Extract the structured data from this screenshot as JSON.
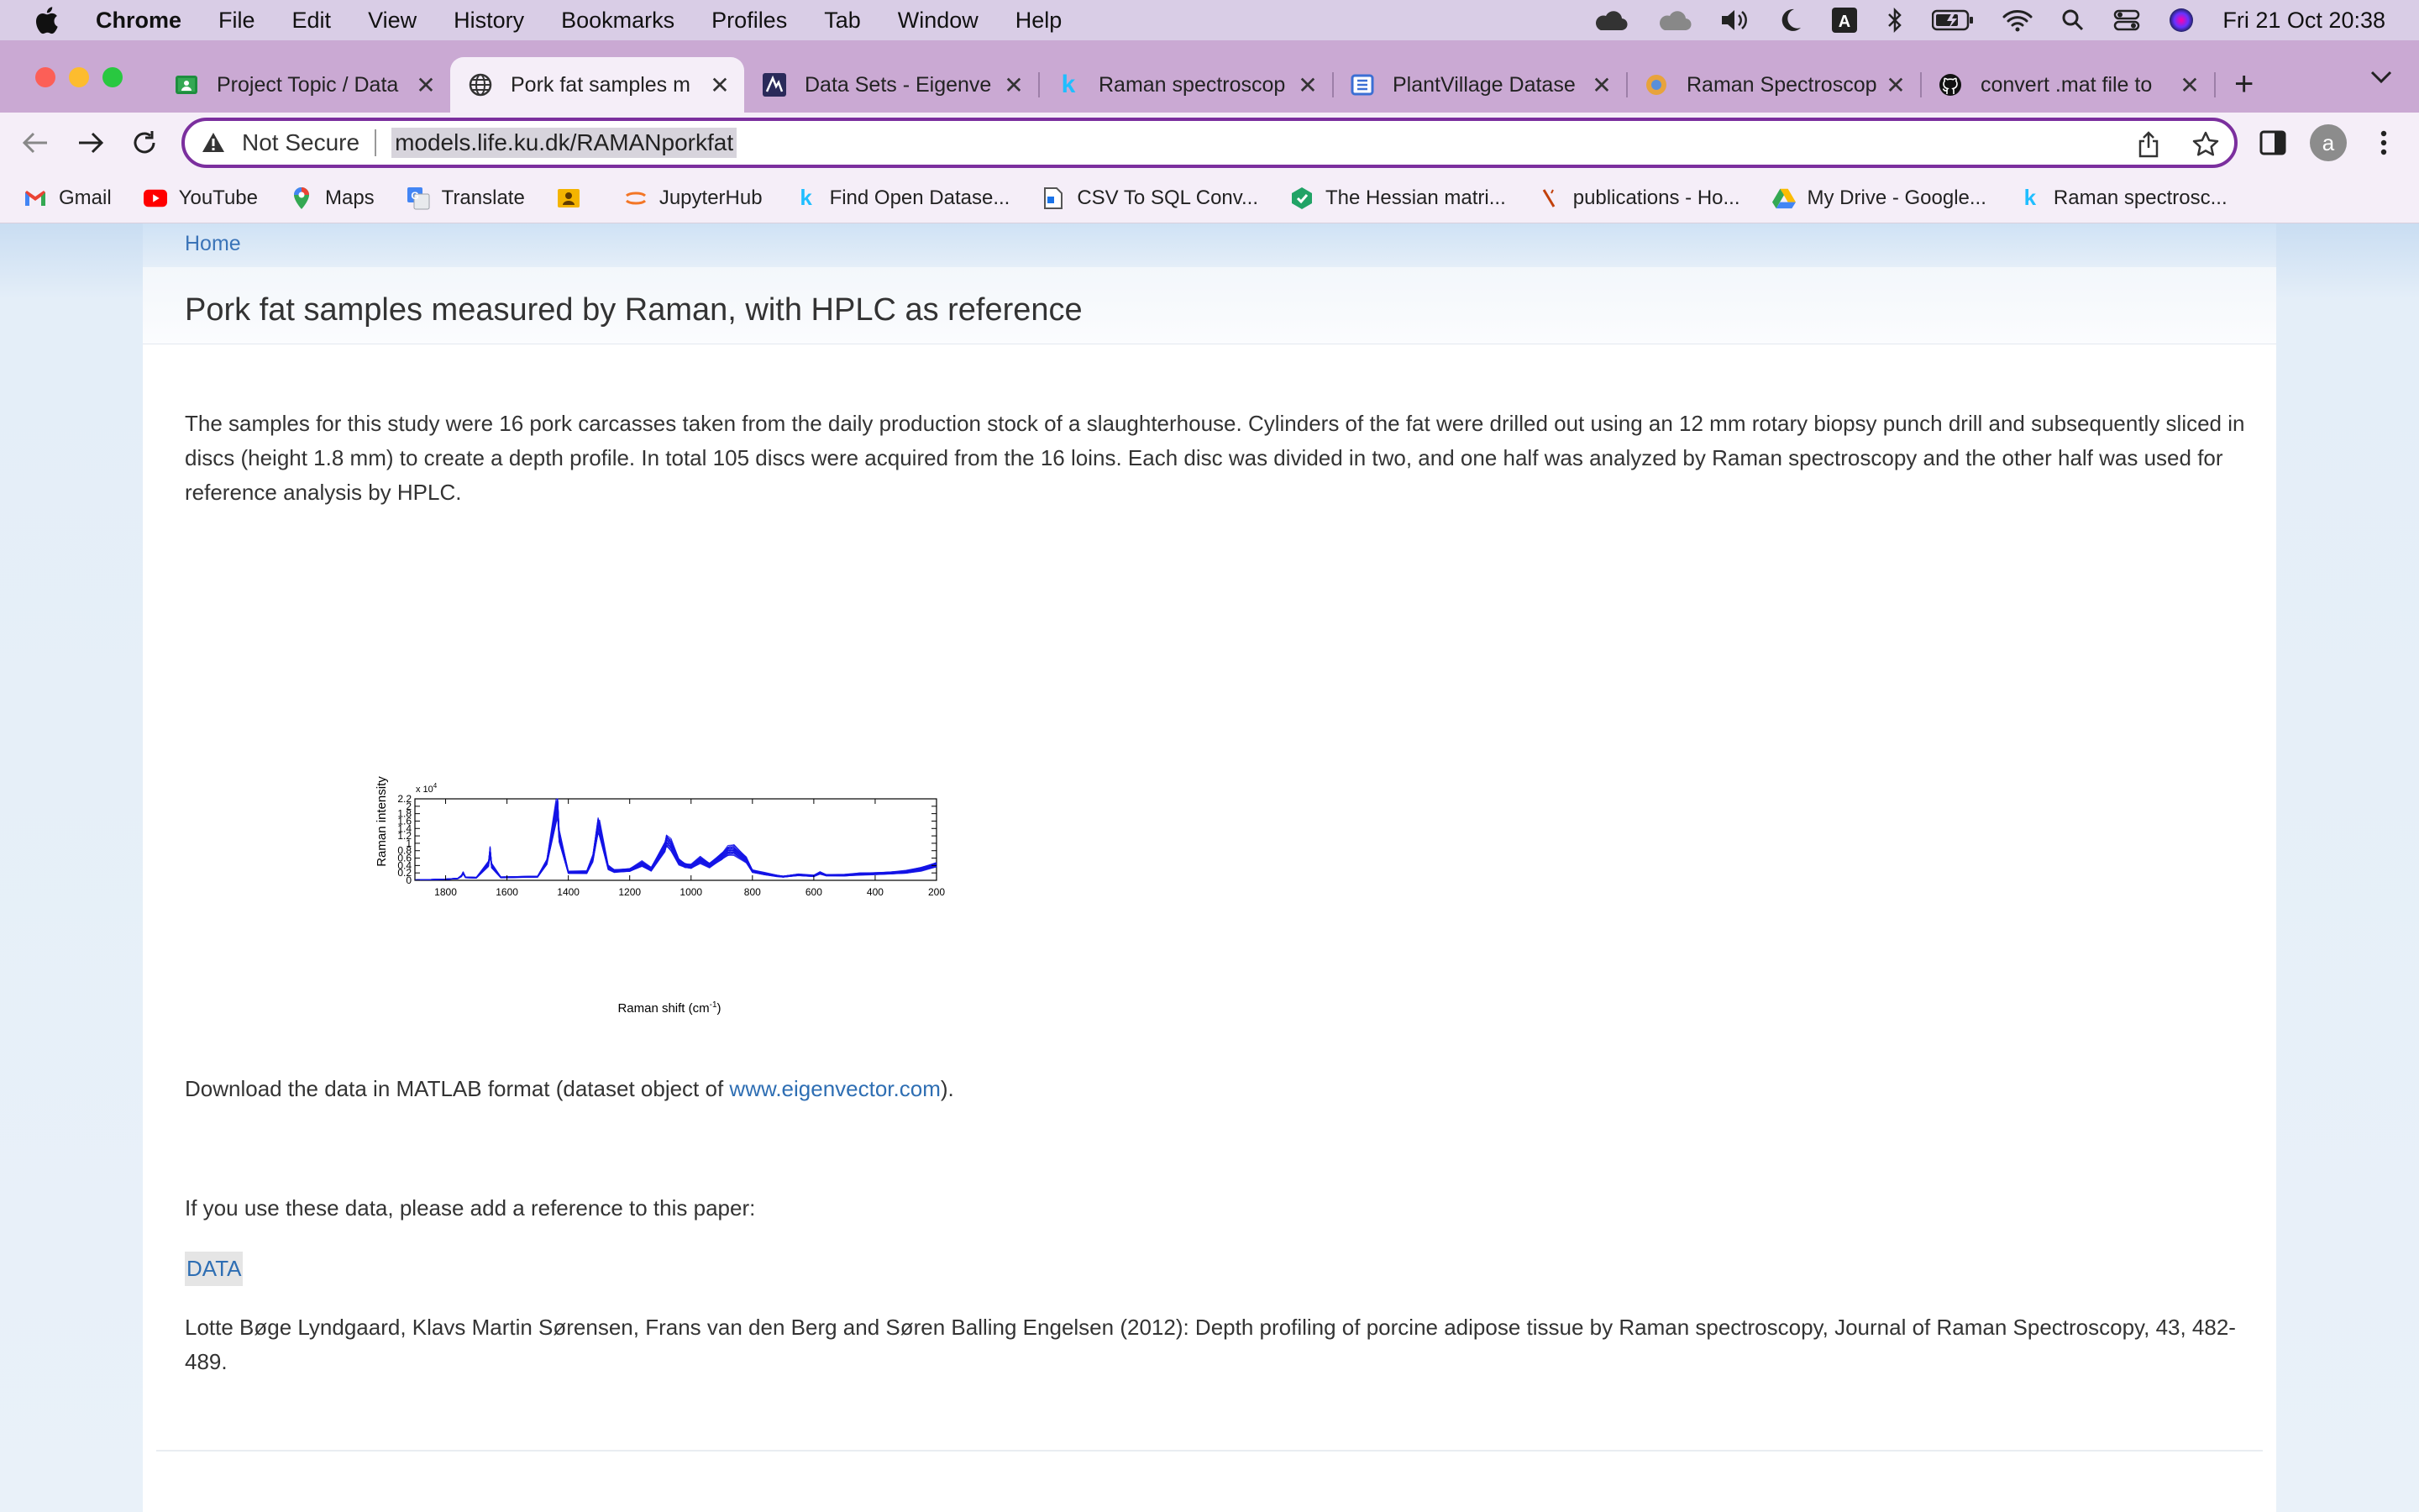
{
  "menubar": {
    "app": "Chrome",
    "items": [
      "File",
      "Edit",
      "View",
      "History",
      "Bookmarks",
      "Profiles",
      "Tab",
      "Window",
      "Help"
    ],
    "clock": "Fri 21 Oct  20:38",
    "status_icons": [
      "cloud-icon",
      "cloud-outline-icon",
      "volume-icon",
      "moon-icon",
      "keyboard-input-icon",
      "bluetooth-icon",
      "battery-icon",
      "wifi-icon",
      "spotlight-search-icon",
      "control-center-icon",
      "siri-icon"
    ]
  },
  "tabs": [
    {
      "label": "Project Topic / Data",
      "icon": "google-classroom-icon"
    },
    {
      "label": "Pork fat samples m",
      "icon": "globe-icon"
    },
    {
      "label": "Data Sets - Eigenve",
      "icon": "eigenvector-icon"
    },
    {
      "label": "Raman spectroscop",
      "icon": "kaggle-icon"
    },
    {
      "label": "PlantVillage Datase",
      "icon": "dataset-icon"
    },
    {
      "label": "Raman Spectroscop",
      "icon": "raman-icon"
    },
    {
      "label": "convert .mat file to",
      "icon": "github-icon"
    }
  ],
  "omnibox": {
    "security": "Not Secure",
    "url": "models.life.ku.dk/RAMANporkfat"
  },
  "profile_initial": "a",
  "bookmarks": [
    {
      "label": "Gmail",
      "icon": "gmail-icon"
    },
    {
      "label": "YouTube",
      "icon": "youtube-icon"
    },
    {
      "label": "Maps",
      "icon": "maps-icon"
    },
    {
      "label": "Translate",
      "icon": "translate-icon"
    },
    {
      "label": "",
      "icon": "user-card-icon"
    },
    {
      "label": "JupyterHub",
      "icon": "jupyter-icon"
    },
    {
      "label": "Find Open Datase...",
      "icon": "kaggle-icon"
    },
    {
      "label": "CSV To SQL Conv...",
      "icon": "csv-icon"
    },
    {
      "label": "The Hessian matri...",
      "icon": "hessian-icon"
    },
    {
      "label": "publications - Ho...",
      "icon": "publications-icon"
    },
    {
      "label": "My Drive - Google...",
      "icon": "google-drive-icon"
    },
    {
      "label": "Raman spectrosc...",
      "icon": "kaggle-icon"
    }
  ],
  "page": {
    "home_link": "Home",
    "title": "Pork fat samples measured by Raman, with HPLC as reference",
    "description": "The samples for this study were 16 pork carcasses taken from the daily production stock of a slaughterhouse. Cylinders of the fat were drilled out using an 12 mm rotary biopsy punch drill and subsequently sliced in discs (height 1.8 mm) to create a depth profile. In total 105 discs were acquired from the 16 loins. Each disc was divided in two, and one half was analyzed by Raman spectroscopy and the other half was used for reference analysis by HPLC.",
    "download_prefix": "Download the data in MATLAB format (dataset object of ",
    "download_link": "www.eigenvector.com",
    "download_suffix": ").",
    "cite_note": "If you use these data, please add a reference to this paper:",
    "ref_link": "DATA",
    "citation": "Lotte Bøge Lyndgaard, Klavs Martin Sørensen, Frans van den Berg and Søren Balling Engelsen (2012): Depth profiling of porcine adipose tissue by Raman spectroscopy, Journal of Raman Spectroscopy, 43, 482-489."
  },
  "chart_data": {
    "type": "line",
    "title": "",
    "xlabel": "Raman shift (cm",
    "xlabel_sup": "-1",
    "xlabel_end": ")",
    "ylabel": "Raman intensity",
    "y_multiplier": "x 10",
    "y_multiplier_exp": "4",
    "xlim": [
      1900,
      200
    ],
    "x_reversed": true,
    "ylim": [
      0,
      2.2
    ],
    "x_ticks": [
      1800,
      1600,
      1400,
      1200,
      1000,
      800,
      600,
      400,
      200
    ],
    "y_ticks": [
      0,
      0.2,
      0.4,
      0.6,
      0.8,
      1,
      1.2,
      1.4,
      1.6,
      1.8,
      2,
      2.2
    ],
    "y_tick_labels": [
      "0",
      "0.2",
      "0.4",
      "0.6",
      "0.8",
      "1",
      "1.2",
      "1.4",
      "1.6",
      "1.8",
      "2",
      "2.2"
    ],
    "series_color": "#1414e6",
    "series_count_note": "many overlapping spectra",
    "representative_spectrum": {
      "x": [
        1900,
        1800,
        1760,
        1748,
        1743,
        1735,
        1700,
        1660,
        1655,
        1650,
        1620,
        1500,
        1470,
        1440,
        1435,
        1430,
        1400,
        1340,
        1320,
        1303,
        1298,
        1270,
        1250,
        1200,
        1160,
        1130,
        1085,
        1080,
        1065,
        1040,
        1020,
        1000,
        970,
        940,
        900,
        880,
        860,
        820,
        800,
        760,
        720,
        700,
        650,
        600,
        580,
        560,
        500,
        450,
        400,
        350,
        300,
        250,
        200
      ],
      "y": [
        0.01,
        0.03,
        0.05,
        0.12,
        0.2,
        0.08,
        0.07,
        0.45,
        0.8,
        0.4,
        0.08,
        0.1,
        0.5,
        1.85,
        2.04,
        1.2,
        0.22,
        0.22,
        0.6,
        1.48,
        1.4,
        0.35,
        0.25,
        0.28,
        0.45,
        0.3,
        0.9,
        1.08,
        0.95,
        0.5,
        0.4,
        0.38,
        0.55,
        0.4,
        0.65,
        0.8,
        0.82,
        0.55,
        0.25,
        0.18,
        0.12,
        0.1,
        0.15,
        0.12,
        0.2,
        0.14,
        0.14,
        0.17,
        0.18,
        0.2,
        0.23,
        0.3,
        0.42
      ]
    },
    "band": {
      "low_scale": 0.85,
      "high_scale": 1.14
    }
  }
}
